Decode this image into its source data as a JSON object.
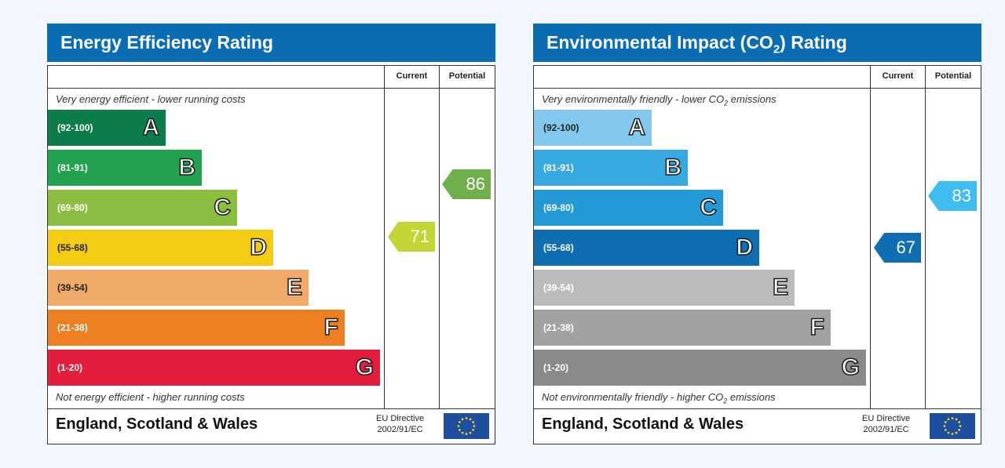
{
  "chart_data": [
    {
      "type": "bar",
      "title": "Energy Efficiency Rating",
      "columns": [
        "Current",
        "Potential"
      ],
      "top_caption": "Very energy efficient - lower running costs",
      "bottom_caption": "Not energy efficient - higher running costs",
      "bands": [
        {
          "letter": "A",
          "range": "(92-100)",
          "color": "#0c7c4a"
        },
        {
          "letter": "B",
          "range": "(81-91)",
          "color": "#21a24e"
        },
        {
          "letter": "C",
          "range": "(69-80)",
          "color": "#8cbd40"
        },
        {
          "letter": "D",
          "range": "(55-68)",
          "color": "#f5cc14"
        },
        {
          "letter": "E",
          "range": "(39-54)",
          "color": "#f0a968"
        },
        {
          "letter": "F",
          "range": "(21-38)",
          "color": "#ec7f22"
        },
        {
          "letter": "G",
          "range": "(1-20)",
          "color": "#e31d3c"
        }
      ],
      "current": {
        "value": 71,
        "color": "#c3d534"
      },
      "potential": {
        "value": 86,
        "color": "#6fb04a"
      },
      "footer": {
        "country": "England, Scotland & Wales",
        "eu_line1": "EU Directive",
        "eu_line2": "2002/91/EC"
      }
    },
    {
      "type": "bar",
      "title_main": "Environmental Impact (CO",
      "title_sub": "2",
      "title_end": ") Rating",
      "columns": [
        "Current",
        "Potential"
      ],
      "top_caption_main": "Very environmentally friendly - lower CO",
      "top_caption_sub": "2",
      "top_caption_end": " emissions",
      "bottom_caption_main": "Not environmentally friendly - higher CO",
      "bottom_caption_sub": "2",
      "bottom_caption_end": " emissions",
      "bands": [
        {
          "letter": "A",
          "range": "(92-100)",
          "color": "#82c7ec"
        },
        {
          "letter": "B",
          "range": "(81-91)",
          "color": "#38a9e0"
        },
        {
          "letter": "C",
          "range": "(69-80)",
          "color": "#239ad6"
        },
        {
          "letter": "D",
          "range": "(55-68)",
          "color": "#0f6eb2"
        },
        {
          "letter": "E",
          "range": "(39-54)",
          "color": "#bbbbbb"
        },
        {
          "letter": "F",
          "range": "(21-38)",
          "color": "#a2a2a2"
        },
        {
          "letter": "G",
          "range": "(1-20)",
          "color": "#8a8a8a"
        }
      ],
      "current": {
        "value": 67,
        "color": "#0f6eb2"
      },
      "potential": {
        "value": 83,
        "color": "#3fbdf0"
      },
      "footer": {
        "country": "England, Scotland & Wales",
        "eu_line1": "EU Directive",
        "eu_line2": "2002/91/EC"
      }
    }
  ]
}
